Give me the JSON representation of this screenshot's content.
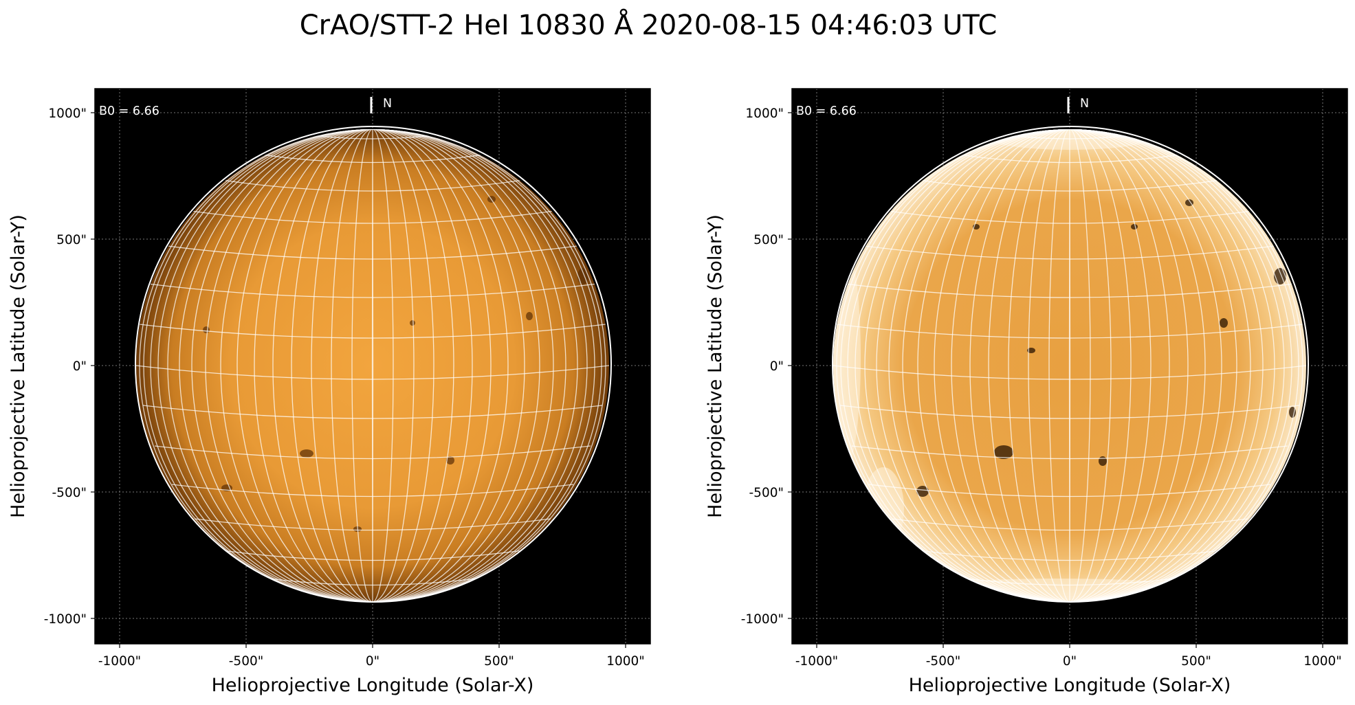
{
  "title": "CrAO/STT-2 HeI 10830 Å 2020-08-15 04:46:03 UTC",
  "colors": {
    "background": "#000000",
    "disk_center": "#f0a23c",
    "disk_limb": "#6e3a08",
    "grid": "#ffffff"
  },
  "panels": [
    {
      "id": "left",
      "processing": "raw",
      "b0_label": "B0 = 6.66",
      "north_label": "N",
      "x_axis_label": "Helioprojective Longitude (Solar-X)",
      "y_axis_label": "Helioprojective Latitude (Solar-Y)",
      "x_ticks": [
        "-1000\"",
        "-500\"",
        "0\"",
        "500\"",
        "1000\""
      ],
      "y_ticks": [
        "1000\"",
        "500\"",
        "0\"",
        "-500\"",
        "-1000\""
      ]
    },
    {
      "id": "right",
      "processing": "limb-enhanced",
      "b0_label": "B0 = 6.66",
      "north_label": "N",
      "x_axis_label": "Helioprojective Longitude (Solar-X)",
      "y_axis_label": "Helioprojective Latitude (Solar-Y)",
      "x_ticks": [
        "-1000\"",
        "-500\"",
        "0\"",
        "500\"",
        "1000\""
      ],
      "y_ticks": [
        "1000\"",
        "500\"",
        "0\"",
        "-500\"",
        "-1000\""
      ]
    }
  ]
}
